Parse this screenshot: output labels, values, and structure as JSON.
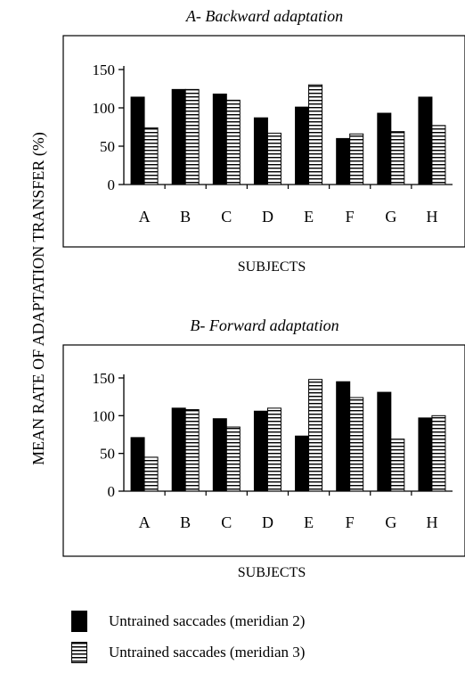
{
  "y_axis_label": "MEAN RATE OF ADAPTATION TRANSFER (%)",
  "colors": {
    "bar_solid": "#000000",
    "bar_striped": "#ffffff",
    "stroke": "#000000"
  },
  "legend": [
    {
      "label": "Untrained saccades (meridian 2)",
      "pattern": "solid"
    },
    {
      "label": "Untrained saccades (meridian 3)",
      "pattern": "horizontal-stripes"
    }
  ],
  "chart_data": [
    {
      "type": "bar",
      "title": "A- Backward adaptation",
      "xlabel": "SUBJECTS",
      "ylabel": "MEAN RATE OF ADAPTATION TRANSFER (%)",
      "categories": [
        "A",
        "B",
        "C",
        "D",
        "E",
        "F",
        "G",
        "H"
      ],
      "yticks": [
        0,
        50,
        100,
        150
      ],
      "ylim": [
        0,
        150
      ],
      "grid": false,
      "series": [
        {
          "name": "Untrained saccades (meridian 2)",
          "pattern": "solid",
          "values": [
            114,
            124,
            118,
            87,
            101,
            60,
            93,
            114
          ]
        },
        {
          "name": "Untrained saccades (meridian 3)",
          "pattern": "horizontal-stripes",
          "values": [
            74,
            124,
            110,
            67,
            130,
            66,
            69,
            77
          ]
        }
      ]
    },
    {
      "type": "bar",
      "title": "B- Forward adaptation",
      "xlabel": "SUBJECTS",
      "ylabel": "MEAN RATE OF ADAPTATION TRANSFER (%)",
      "categories": [
        "A",
        "B",
        "C",
        "D",
        "E",
        "F",
        "G",
        "H"
      ],
      "yticks": [
        0,
        50,
        100,
        150
      ],
      "ylim": [
        0,
        150
      ],
      "grid": false,
      "series": [
        {
          "name": "Untrained saccades (meridian 2)",
          "pattern": "solid",
          "values": [
            71,
            110,
            96,
            106,
            73,
            145,
            131,
            97
          ]
        },
        {
          "name": "Untrained saccades (meridian 3)",
          "pattern": "horizontal-stripes",
          "values": [
            45,
            108,
            85,
            110,
            148,
            124,
            69,
            100
          ]
        }
      ]
    }
  ]
}
